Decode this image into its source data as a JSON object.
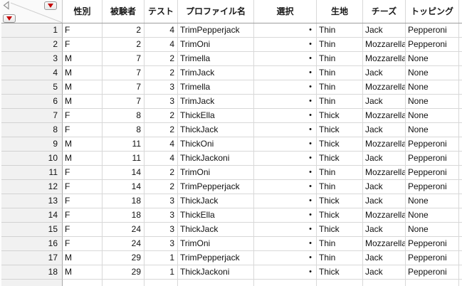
{
  "table": {
    "columns": [
      {
        "key": "gender",
        "label": "性別",
        "align": "left"
      },
      {
        "key": "subject",
        "label": "被験者",
        "align": "right"
      },
      {
        "key": "test",
        "label": "テスト",
        "align": "right"
      },
      {
        "key": "profile",
        "label": "プロファイル名",
        "align": "left"
      },
      {
        "key": "choice",
        "label": "選択",
        "align": "dot"
      },
      {
        "key": "crust",
        "label": "生地",
        "align": "left"
      },
      {
        "key": "cheese",
        "label": "チーズ",
        "align": "left"
      },
      {
        "key": "topping",
        "label": "トッピング",
        "align": "left"
      }
    ],
    "missing_value_marker": "•",
    "rows": [
      {
        "n": "1",
        "cells": [
          "F",
          "2",
          "4",
          "TrimPepperjack",
          "•",
          "Thin",
          "Jack",
          "Pepperoni"
        ]
      },
      {
        "n": "2",
        "cells": [
          "F",
          "2",
          "4",
          "TrimOni",
          "•",
          "Thin",
          "Mozzarella",
          "Pepperoni"
        ]
      },
      {
        "n": "3",
        "cells": [
          "M",
          "7",
          "2",
          "Trimella",
          "•",
          "Thin",
          "Mozzarella",
          "None"
        ]
      },
      {
        "n": "4",
        "cells": [
          "M",
          "7",
          "2",
          "TrimJack",
          "•",
          "Thin",
          "Jack",
          "None"
        ]
      },
      {
        "n": "5",
        "cells": [
          "M",
          "7",
          "3",
          "Trimella",
          "•",
          "Thin",
          "Mozzarella",
          "None"
        ]
      },
      {
        "n": "6",
        "cells": [
          "M",
          "7",
          "3",
          "TrimJack",
          "•",
          "Thin",
          "Jack",
          "None"
        ]
      },
      {
        "n": "7",
        "cells": [
          "F",
          "8",
          "2",
          "ThickElla",
          "•",
          "Thick",
          "Mozzarella",
          "None"
        ]
      },
      {
        "n": "8",
        "cells": [
          "F",
          "8",
          "2",
          "ThickJack",
          "•",
          "Thick",
          "Jack",
          "None"
        ]
      },
      {
        "n": "9",
        "cells": [
          "M",
          "11",
          "4",
          "ThickOni",
          "•",
          "Thick",
          "Mozzarella",
          "Pepperoni"
        ]
      },
      {
        "n": "10",
        "cells": [
          "M",
          "11",
          "4",
          "ThickJackoni",
          "•",
          "Thick",
          "Jack",
          "Pepperoni"
        ]
      },
      {
        "n": "11",
        "cells": [
          "F",
          "14",
          "2",
          "TrimOni",
          "•",
          "Thin",
          "Mozzarella",
          "Pepperoni"
        ]
      },
      {
        "n": "12",
        "cells": [
          "F",
          "14",
          "2",
          "TrimPepperjack",
          "•",
          "Thin",
          "Jack",
          "Pepperoni"
        ]
      },
      {
        "n": "13",
        "cells": [
          "F",
          "18",
          "3",
          "ThickJack",
          "•",
          "Thick",
          "Jack",
          "None"
        ]
      },
      {
        "n": "14",
        "cells": [
          "F",
          "18",
          "3",
          "ThickElla",
          "•",
          "Thick",
          "Mozzarella",
          "None"
        ]
      },
      {
        "n": "15",
        "cells": [
          "F",
          "24",
          "3",
          "ThickJack",
          "•",
          "Thick",
          "Jack",
          "None"
        ]
      },
      {
        "n": "16",
        "cells": [
          "F",
          "24",
          "3",
          "TrimOni",
          "•",
          "Thin",
          "Mozzarella",
          "Pepperoni"
        ]
      },
      {
        "n": "17",
        "cells": [
          "M",
          "29",
          "1",
          "TrimPepperjack",
          "•",
          "Thin",
          "Jack",
          "Pepperoni"
        ]
      },
      {
        "n": "18",
        "cells": [
          "M",
          "29",
          "1",
          "ThickJackoni",
          "•",
          "Thick",
          "Jack",
          "Pepperoni"
        ]
      }
    ]
  },
  "corner": {
    "columns_menu_icon": "red-triangle-down",
    "rows_menu_icon": "red-triangle-down",
    "collapse_icon": "triangle-left"
  },
  "colors": {
    "red_triangle": "#c40000",
    "row_header_bg": "#f1f1f1",
    "gridline": "#d8d8d8",
    "row_header_border": "#a8a8a8",
    "header_bottom_border": "#9d9d9d"
  }
}
